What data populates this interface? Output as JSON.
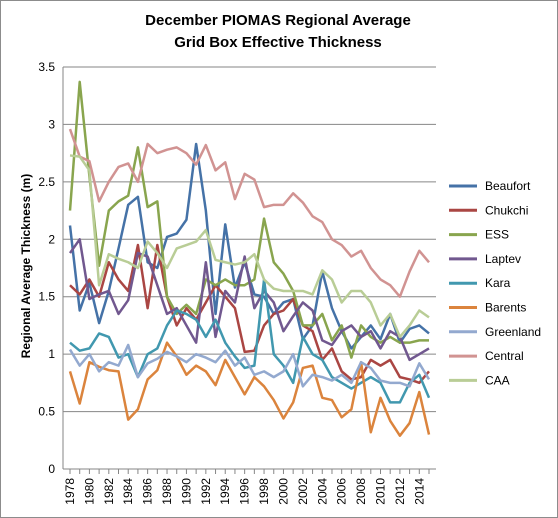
{
  "chart_data": {
    "type": "line",
    "title": "December PIOMAS Regional Average",
    "subtitle": "Grid Box Effective Thickness",
    "ylabel": "Regional Average Thickness  (m)",
    "xlabel": "",
    "ylim": [
      0,
      3.5
    ],
    "yticks": [
      "0",
      "0.5",
      "1",
      "1.5",
      "2",
      "2.5",
      "3",
      "3.5"
    ],
    "xticks": [
      "1978",
      "1980",
      "1982",
      "1984",
      "1986",
      "1988",
      "1990",
      "1992",
      "1994",
      "1996",
      "1998",
      "2000",
      "2002",
      "2004",
      "2006",
      "2008",
      "2010",
      "2012",
      "2014"
    ],
    "x": [
      1978,
      1979,
      1980,
      1981,
      1982,
      1983,
      1984,
      1985,
      1986,
      1987,
      1988,
      1989,
      1990,
      1991,
      1992,
      1993,
      1994,
      1995,
      1996,
      1997,
      1998,
      1999,
      2000,
      2001,
      2002,
      2003,
      2004,
      2005,
      2006,
      2007,
      2008,
      2009,
      2010,
      2011,
      2012,
      2013,
      2014,
      2015
    ],
    "grid": "horizontal",
    "legend_position": "right",
    "series": [
      {
        "name": "Beaufort",
        "color": "#4572A7",
        "values": [
          2.12,
          1.38,
          1.62,
          1.27,
          1.55,
          1.92,
          2.3,
          2.37,
          1.8,
          1.75,
          2.02,
          2.05,
          2.17,
          2.83,
          2.25,
          1.35,
          2.13,
          1.58,
          1.8,
          1.52,
          1.5,
          1.35,
          1.45,
          1.48,
          1.13,
          1.25,
          1.72,
          1.4,
          1.2,
          1.05,
          1.15,
          1.25,
          1.13,
          1.35,
          1.1,
          1.22,
          1.25,
          1.18
        ]
      },
      {
        "name": "Chukchi",
        "color": "#AA4643",
        "values": [
          1.6,
          1.52,
          1.65,
          1.5,
          1.8,
          1.65,
          1.55,
          1.95,
          1.4,
          1.95,
          1.5,
          1.25,
          1.4,
          1.3,
          1.45,
          1.6,
          1.5,
          1.4,
          1.02,
          1.03,
          1.25,
          1.35,
          1.38,
          1.48,
          1.25,
          1.2,
          0.95,
          1.05,
          0.85,
          0.78,
          0.8,
          0.95,
          0.9,
          0.95,
          0.8,
          0.78,
          0.75,
          0.85
        ]
      },
      {
        "name": "ESS",
        "color": "#89A54E",
        "values": [
          2.25,
          3.37,
          2.55,
          1.77,
          2.25,
          2.33,
          2.38,
          2.8,
          2.28,
          2.33,
          1.5,
          1.35,
          1.43,
          1.35,
          1.65,
          1.6,
          1.65,
          1.6,
          1.6,
          1.65,
          2.18,
          1.8,
          1.7,
          1.55,
          1.25,
          1.25,
          1.35,
          1.12,
          1.25,
          0.97,
          1.25,
          1.15,
          1.1,
          1.15,
          1.1,
          1.1,
          1.12,
          1.12
        ]
      },
      {
        "name": "Laptev",
        "color": "#71588F",
        "values": [
          1.88,
          2.0,
          1.48,
          1.52,
          1.55,
          1.35,
          1.47,
          1.88,
          1.85,
          1.6,
          1.35,
          1.4,
          1.25,
          1.1,
          1.8,
          1.15,
          1.55,
          1.45,
          1.85,
          1.4,
          1.55,
          1.45,
          1.2,
          1.33,
          1.45,
          1.38,
          1.12,
          1.08,
          1.2,
          1.25,
          1.15,
          1.2,
          1.05,
          1.2,
          1.15,
          0.95,
          1.0,
          1.05
        ]
      },
      {
        "name": "Kara",
        "color": "#4198AF",
        "values": [
          1.1,
          1.03,
          1.05,
          1.18,
          1.15,
          0.97,
          1.0,
          0.8,
          1.0,
          1.05,
          1.25,
          1.38,
          1.35,
          1.3,
          1.15,
          1.3,
          1.1,
          0.98,
          0.88,
          0.9,
          1.65,
          1.0,
          0.9,
          0.75,
          1.15,
          1.0,
          0.95,
          0.8,
          0.75,
          0.7,
          0.75,
          0.8,
          0.75,
          0.58,
          0.58,
          0.75,
          0.82,
          0.62
        ]
      },
      {
        "name": "Barents",
        "color": "#DB843D",
        "values": [
          0.85,
          0.57,
          0.93,
          0.89,
          0.86,
          0.85,
          0.43,
          0.52,
          0.78,
          0.86,
          1.1,
          0.98,
          0.82,
          0.9,
          0.85,
          0.73,
          0.95,
          0.8,
          0.65,
          0.8,
          0.72,
          0.6,
          0.44,
          0.58,
          0.88,
          0.9,
          0.62,
          0.6,
          0.45,
          0.52,
          0.93,
          0.32,
          0.62,
          0.42,
          0.29,
          0.4,
          0.67,
          0.3
        ]
      },
      {
        "name": "Greenland",
        "color": "#93A9CF",
        "values": [
          1.04,
          0.9,
          1.0,
          0.85,
          0.93,
          0.9,
          1.08,
          0.8,
          0.92,
          0.96,
          1.02,
          0.98,
          0.93,
          1.0,
          0.97,
          0.93,
          1.03,
          0.9,
          0.97,
          0.82,
          0.85,
          0.8,
          0.85,
          1.0,
          0.72,
          0.82,
          0.8,
          0.77,
          0.82,
          0.75,
          0.93,
          0.88,
          0.77,
          0.75,
          0.75,
          0.72,
          0.92,
          0.78
        ]
      },
      {
        "name": "Central",
        "color": "#D19392",
        "values": [
          2.96,
          2.72,
          2.68,
          2.33,
          2.5,
          2.63,
          2.66,
          2.5,
          2.83,
          2.75,
          2.78,
          2.8,
          2.75,
          2.65,
          2.82,
          2.6,
          2.67,
          2.35,
          2.57,
          2.52,
          2.28,
          2.3,
          2.3,
          2.4,
          2.32,
          2.2,
          2.15,
          2.0,
          1.95,
          1.85,
          1.9,
          1.75,
          1.65,
          1.6,
          1.5,
          1.72,
          1.9,
          1.8
        ]
      },
      {
        "name": "CAA",
        "color": "#B9CD96",
        "values": [
          2.73,
          2.72,
          2.6,
          1.6,
          1.87,
          1.83,
          1.8,
          1.75,
          1.98,
          1.88,
          1.75,
          1.92,
          1.95,
          1.98,
          2.08,
          1.82,
          1.8,
          1.78,
          1.8,
          1.87,
          1.65,
          1.57,
          1.55,
          1.55,
          1.55,
          1.52,
          1.73,
          1.65,
          1.45,
          1.55,
          1.55,
          1.45,
          1.25,
          1.35,
          1.15,
          1.25,
          1.38,
          1.32
        ]
      }
    ]
  }
}
